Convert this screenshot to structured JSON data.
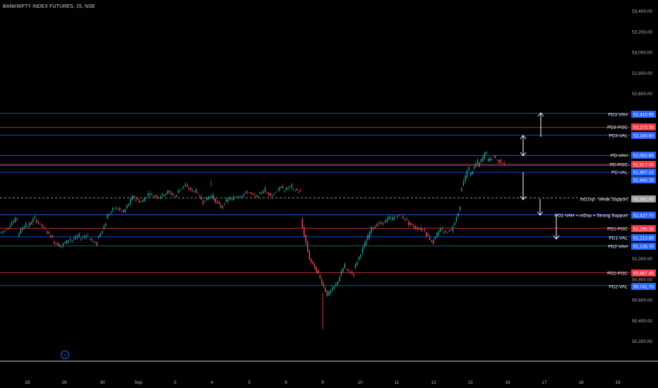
{
  "header": {
    "title": "BANKNIFTY INDEX FUTURES, 15, NSE"
  },
  "chart_data": {
    "type": "candlestick",
    "title": "BANKNIFTY INDEX FUTURES, 15, NSE",
    "ylim": [
      50100,
      53450
    ],
    "y_ticks": [
      "53,400.00",
      "53,200.00",
      "53,000.00",
      "52,800.00",
      "52,600.00",
      "51,000.00",
      "50,800.00",
      "50,600.00",
      "50,400.00",
      "50,200.00"
    ],
    "y_tick_values": [
      53400,
      53200,
      53000,
      52800,
      52600,
      51000,
      50800,
      50600,
      50400,
      50200
    ],
    "x_ticks": [
      "28",
      "29",
      "30",
      "Sep",
      "3",
      "4",
      "5",
      "6",
      "9",
      "10",
      "11",
      "12",
      "13",
      "16",
      "17",
      "18",
      "19"
    ],
    "colors": {
      "up": "#26a69a",
      "down": "#ef5350",
      "blue_level": "#2962ff",
      "red_level": "#f23645"
    },
    "levels": [
      {
        "label": "PD3-VAH",
        "value": 52410.95,
        "badge": "52,410.95",
        "color": "#2962ff"
      },
      {
        "label": "PD3-POC",
        "value": 52273.35,
        "badge": "52,273.35",
        "color": "#f23645"
      },
      {
        "label": "PD3-VAL",
        "value": 52200.6,
        "badge": "52,200.60",
        "color": "#2962ff"
      },
      {
        "label": "PD-VAH",
        "value": 52002.85,
        "badge": "52,002.85",
        "color": "#2962ff"
      },
      {
        "label": "PD-POC",
        "value": 51917.0,
        "badge": "51,917.00",
        "color": "#f23645"
      },
      {
        "label": "PD-VAL",
        "value": 51907.1,
        "badge": "51,907.10",
        "color": "#2962ff"
      },
      {
        "label": "",
        "value": 51840.25,
        "badge": "51,840.25",
        "color": "#2962ff"
      },
      {
        "label": "mD1vp - Weak Support",
        "value": 51592.0,
        "badge": "51,592.00",
        "color": "#9e9e9e",
        "dashed": true
      },
      {
        "label": "PD1-VAH + mDvp + Strong Support",
        "value": 51427.7,
        "badge": "51,427.70",
        "color": "#2962ff"
      },
      {
        "label": "PD1-POC",
        "value": 51296.35,
        "badge": "51,296.35",
        "color": "#f23645"
      },
      {
        "label": "PD1-VAL",
        "value": 51213.85,
        "badge": "51,213.85",
        "color": "#2962ff"
      },
      {
        "label": "PD2-VAH",
        "value": 51126.7,
        "badge": "51,126.70",
        "color": "#2962ff"
      },
      {
        "label": "PD2-POC",
        "value": 50867.45,
        "badge": "50,867.45",
        "color": "#f23645"
      },
      {
        "label": "PD2-VAL",
        "value": 50741.7,
        "badge": "50,741.70",
        "color": "#2962ff"
      }
    ],
    "ohlc_path": [
      [
        51250,
        51300
      ],
      [
        51320,
        51400
      ],
      [
        51230,
        51350
      ],
      [
        51300,
        51400
      ],
      [
        51380,
        51300
      ],
      [
        51300,
        51200
      ],
      [
        51170,
        51120
      ],
      [
        51130,
        51200
      ],
      [
        51170,
        51230
      ],
      [
        51190,
        51240
      ],
      [
        51200,
        51140
      ],
      [
        51190,
        51350
      ],
      [
        51400,
        51500
      ],
      [
        51500,
        51450
      ],
      [
        51450,
        51600
      ],
      [
        51600,
        51550
      ],
      [
        51550,
        51650
      ],
      [
        51620,
        51600
      ],
      [
        51600,
        51650
      ],
      [
        51650,
        51600
      ],
      [
        51650,
        51720
      ],
      [
        51700,
        51650
      ],
      [
        51680,
        51550
      ],
      [
        51560,
        51620
      ],
      [
        51600,
        51500
      ],
      [
        51500,
        51600
      ],
      [
        51570,
        51620
      ],
      [
        51600,
        51650
      ],
      [
        51650,
        51600
      ],
      [
        51600,
        51680
      ],
      [
        51640,
        51620
      ],
      [
        51650,
        51700
      ],
      [
        51660,
        51710
      ],
      [
        51680,
        51650
      ],
      [
        51380,
        51000
      ],
      [
        51000,
        50850
      ],
      [
        50850,
        50650
      ],
      [
        50650,
        50750
      ],
      [
        50750,
        50950
      ],
      [
        50900,
        50850
      ],
      [
        50900,
        51100
      ],
      [
        51100,
        51300
      ],
      [
        51300,
        51350
      ],
      [
        51330,
        51400
      ],
      [
        51380,
        51420
      ],
      [
        51420,
        51380
      ],
      [
        51350,
        51300
      ],
      [
        51300,
        51280
      ],
      [
        51260,
        51150
      ],
      [
        51200,
        51300
      ],
      [
        51250,
        51280
      ],
      [
        51280,
        51500
      ],
      [
        51650,
        51900
      ],
      [
        51800,
        51950
      ],
      [
        51900,
        52050
      ],
      [
        51950,
        52000
      ],
      [
        51960,
        51930
      ]
    ],
    "annotations": [
      "↑",
      "↕",
      "↓",
      "↓",
      "↓"
    ],
    "replay_badge": "»"
  }
}
